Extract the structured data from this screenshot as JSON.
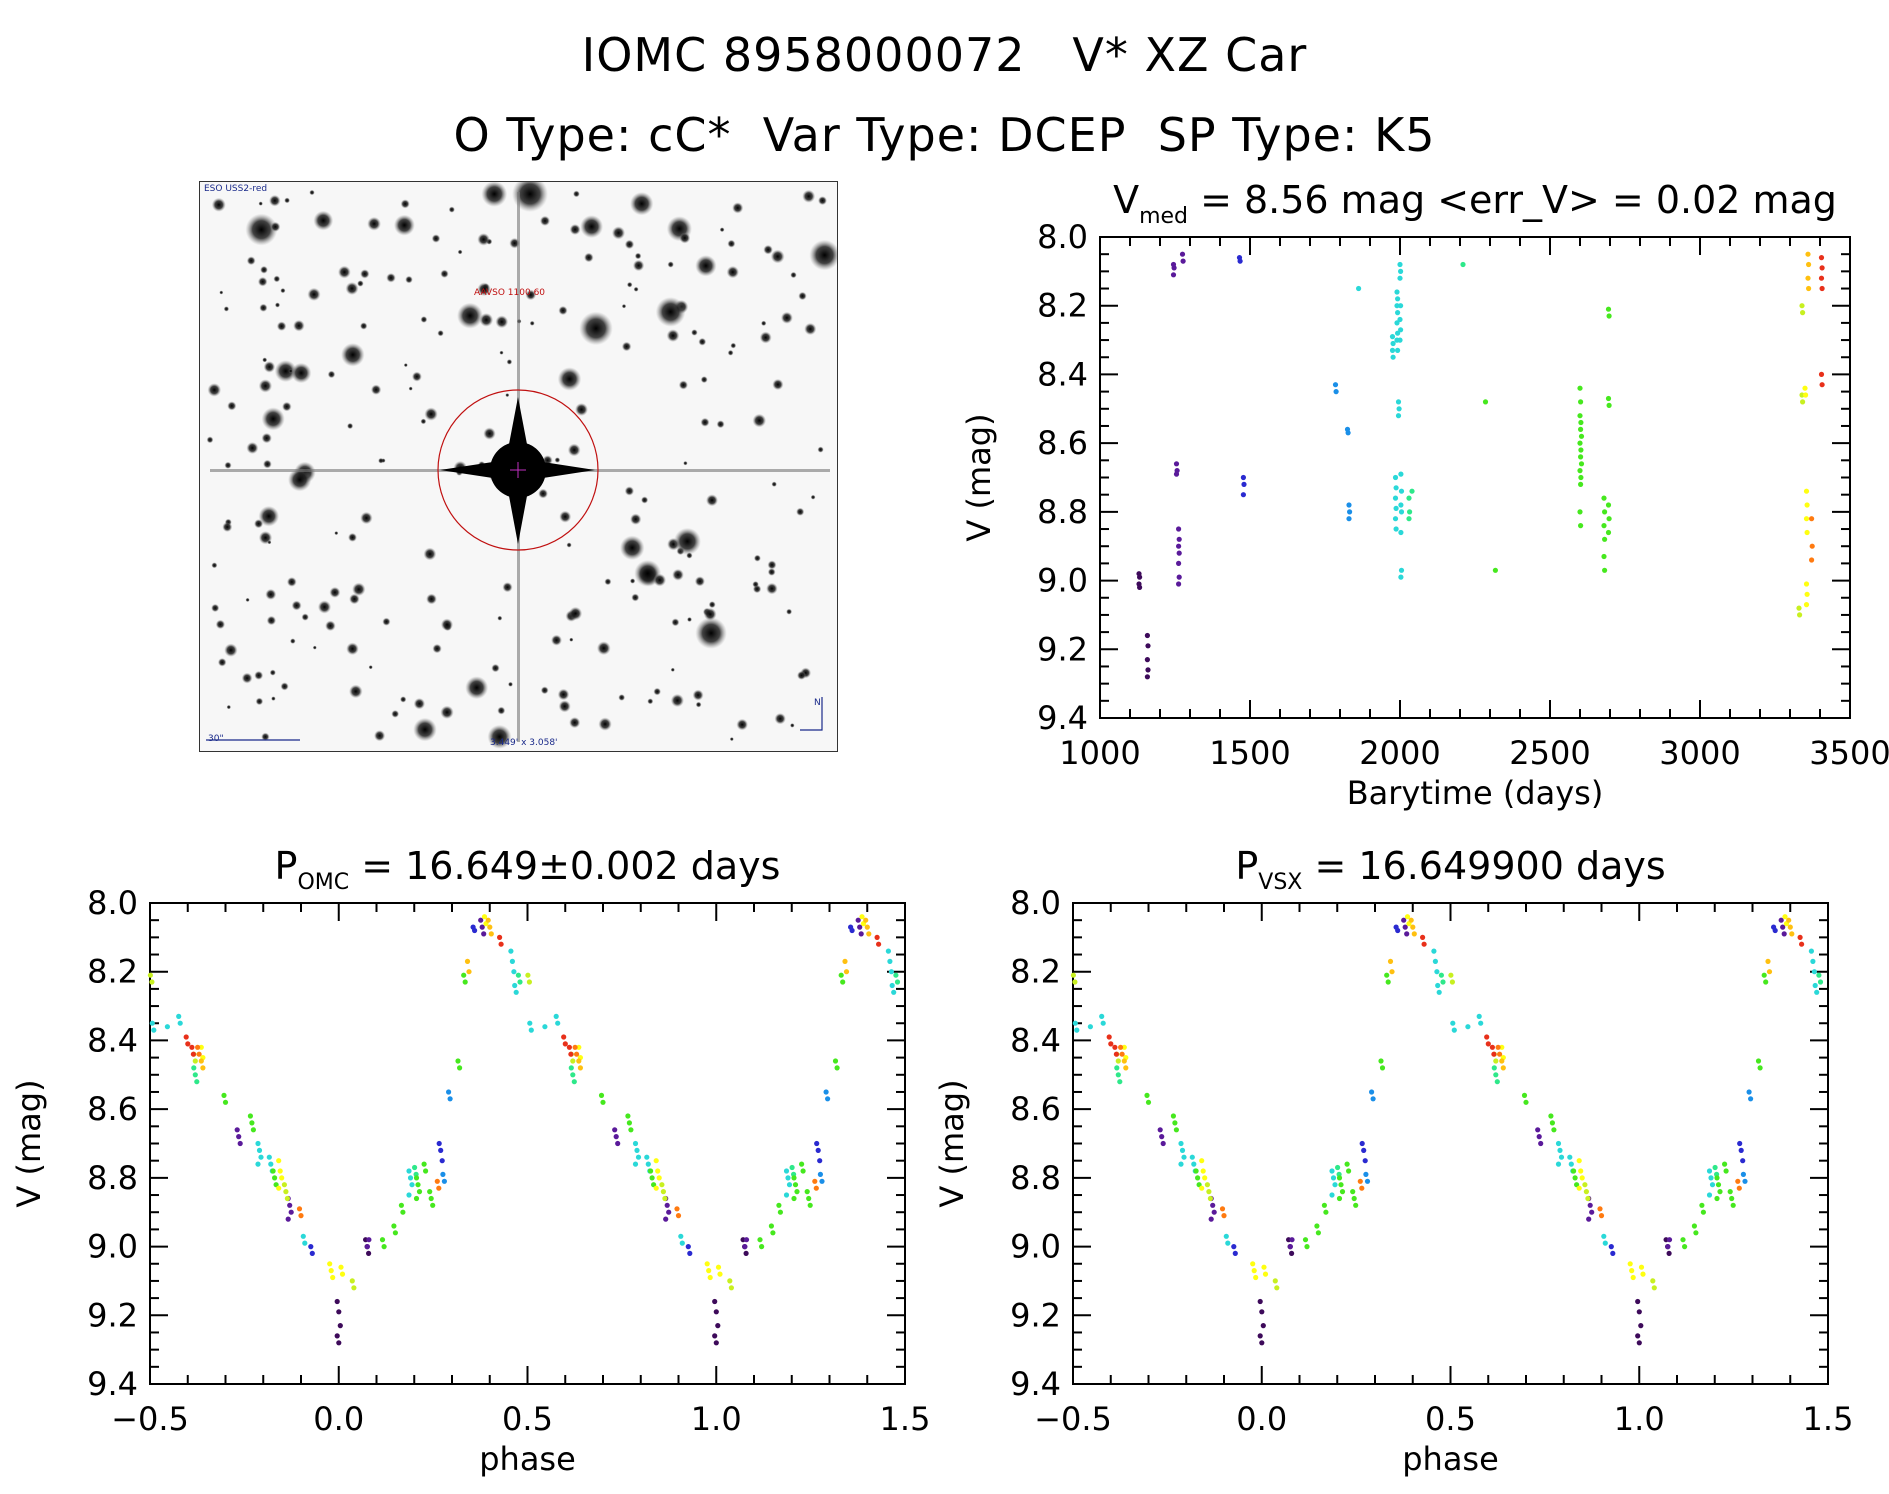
{
  "title_line1": "IOMC 8958000072   V* XZ Car",
  "title_line2": "O Type: cC*  Var Type: DCEP  SP Type: K5",
  "image_panel": {
    "survey": "ESO USS2-red",
    "label": "AAVSO 1100  60",
    "scale": "30\"",
    "fov": "3.449' x 3.058'",
    "compass": "N"
  },
  "colors": {
    "palette": [
      "#3d0a5a",
      "#5a1a9a",
      "#2a2ad0",
      "#1a8fe8",
      "#2ad8d8",
      "#2ee88a",
      "#46e81e",
      "#c8f020",
      "#ffff10",
      "#ffc010",
      "#ff7a10",
      "#e8301a"
    ]
  },
  "chart_data": [
    {
      "id": "lightcurve",
      "type": "scatter",
      "title_main": "V",
      "title_sub": "med",
      "title_rest": " = 8.56 mag <err_V> = 0.02 mag",
      "xlabel": "Barytime (days)",
      "ylabel": "V (mag)",
      "xlim": [
        1000,
        3500
      ],
      "ylim": [
        9.4,
        8.0
      ],
      "xticks": [
        1000,
        1500,
        2000,
        2500,
        3000,
        3500
      ],
      "xtick_labels": [
        "1000",
        "1500",
        "2000",
        "2500",
        "3000",
        "3500"
      ],
      "yticks": [
        8.0,
        8.2,
        8.4,
        8.6,
        8.8,
        9.0,
        9.2,
        9.4
      ],
      "ytick_labels": [
        "8.0",
        "8.2",
        "8.4",
        "8.6",
        "8.8",
        "9.0",
        "9.2",
        "9.4"
      ],
      "groups": [
        {
          "t": 1130,
          "v": [
            8.98,
            8.99,
            9.01,
            9.02
          ],
          "c": 0
        },
        {
          "t": 1158,
          "v": [
            9.16,
            9.19,
            9.23,
            9.26,
            9.28
          ],
          "c": 0
        },
        {
          "t": 1245,
          "v": [
            8.08,
            8.09,
            8.11
          ],
          "c": 1
        },
        {
          "t": 1255,
          "v": [
            8.66,
            8.68,
            8.69
          ],
          "c": 1
        },
        {
          "t": 1262,
          "v": [
            8.85,
            8.88,
            8.9,
            8.92,
            8.95,
            8.99,
            9.01
          ],
          "c": 1
        },
        {
          "t": 1275,
          "v": [
            8.05,
            8.07
          ],
          "c": 1
        },
        {
          "t": 1465,
          "v": [
            8.06,
            8.07
          ],
          "c": 2
        },
        {
          "t": 1478,
          "v": [
            8.7,
            8.72,
            8.75
          ],
          "c": 2
        },
        {
          "t": 1785,
          "v": [
            8.43,
            8.45
          ],
          "c": 3
        },
        {
          "t": 1825,
          "v": [
            8.56,
            8.57
          ],
          "c": 3
        },
        {
          "t": 1830,
          "v": [
            8.78,
            8.8,
            8.82
          ],
          "c": 3
        },
        {
          "t": 1862,
          "v": [
            8.15
          ],
          "c": 4
        },
        {
          "t": 1975,
          "v": [
            8.29,
            8.31,
            8.33,
            8.35
          ],
          "c": 4
        },
        {
          "t": 1990,
          "v": [
            8.16,
            8.18,
            8.2,
            8.22,
            8.25,
            8.28,
            8.3,
            8.33
          ],
          "c": 4
        },
        {
          "t": 1995,
          "v": [
            8.48,
            8.5,
            8.52
          ],
          "c": 4
        },
        {
          "t": 1985,
          "v": [
            8.7,
            8.73,
            8.76,
            8.79,
            8.82,
            8.85
          ],
          "c": 4
        },
        {
          "t": 2000,
          "v": [
            8.08,
            8.1,
            8.12,
            8.2,
            8.24,
            8.27,
            8.3
          ],
          "c": 4
        },
        {
          "t": 2003,
          "v": [
            8.69,
            8.74,
            8.78,
            8.8,
            8.86,
            8.97,
            8.99
          ],
          "c": 4
        },
        {
          "t": 2030,
          "v": [
            8.76,
            8.8,
            8.82
          ],
          "c": 5
        },
        {
          "t": 2040,
          "v": [
            8.74
          ],
          "c": 5
        },
        {
          "t": 2210,
          "v": [
            8.08
          ],
          "c": 5
        },
        {
          "t": 2285,
          "v": [
            8.48
          ],
          "c": 6
        },
        {
          "t": 2318,
          "v": [
            8.97
          ],
          "c": 6
        },
        {
          "t": 2600,
          "v": [
            8.44,
            8.48,
            8.52,
            8.56,
            8.6,
            8.64,
            8.68,
            8.72,
            8.8,
            8.84
          ],
          "c": 6
        },
        {
          "t": 2603,
          "v": [
            8.54,
            8.58,
            8.62,
            8.66,
            8.7
          ],
          "c": 6
        },
        {
          "t": 2680,
          "v": [
            8.76,
            8.8,
            8.84,
            8.88,
            8.93,
            8.97
          ],
          "c": 6
        },
        {
          "t": 2695,
          "v": [
            8.21,
            8.23,
            8.47,
            8.49,
            8.78,
            8.82,
            8.86
          ],
          "c": 6
        },
        {
          "t": 3330,
          "v": [
            9.08,
            9.1
          ],
          "c": 7
        },
        {
          "t": 3340,
          "v": [
            8.2,
            8.22,
            8.46,
            8.48
          ],
          "c": 7
        },
        {
          "t": 3350,
          "v": [
            8.44,
            8.46
          ],
          "c": 8
        },
        {
          "t": 3355,
          "v": [
            8.74,
            8.78,
            8.82,
            8.86,
            9.01,
            9.04,
            9.07
          ],
          "c": 8
        },
        {
          "t": 3360,
          "v": [
            8.05,
            8.08,
            8.12,
            8.15
          ],
          "c": 9
        },
        {
          "t": 3372,
          "v": [
            8.82,
            8.9,
            8.94
          ],
          "c": 10
        },
        {
          "t": 3405,
          "v": [
            8.06,
            8.09,
            8.12,
            8.15,
            8.4,
            8.43
          ],
          "c": 11
        }
      ]
    },
    {
      "id": "fold_omc",
      "type": "scatter",
      "title_main": "P",
      "title_sub": "OMC",
      "title_rest": " = 16.649±0.002 days",
      "xlabel": "phase",
      "ylabel": "V (mag)",
      "xlim": [
        -0.5,
        1.5
      ],
      "ylim": [
        9.4,
        8.0
      ],
      "xticks": [
        -0.5,
        0.0,
        0.5,
        1.0,
        1.5
      ],
      "xtick_labels": [
        "−0.5",
        "0.0",
        "0.5",
        "1.0",
        "1.5"
      ],
      "yticks": [
        8.0,
        8.2,
        8.4,
        8.6,
        8.8,
        9.0,
        9.2,
        9.4
      ],
      "ytick_labels": [
        "8.0",
        "8.2",
        "8.4",
        "8.6",
        "8.8",
        "9.0",
        "9.2",
        "9.4"
      ],
      "fold": [
        {
          "p": 0.0,
          "v": [
            9.16,
            9.19,
            9.23,
            9.26,
            9.28
          ],
          "c": 0
        },
        {
          "p": 0.075,
          "v": [
            8.98,
            9.0,
            9.02
          ],
          "c": 0
        },
        {
          "p": 0.08,
          "v": [
            9.0,
            8.98
          ],
          "c": 1
        },
        {
          "p": -0.13,
          "v": [
            8.86,
            8.88,
            8.9,
            8.92
          ],
          "c": 1
        },
        {
          "p": -0.265,
          "v": [
            8.66,
            8.68,
            8.7
          ],
          "c": 1
        },
        {
          "p": 0.38,
          "v": [
            8.05,
            8.07,
            8.09
          ],
          "c": 1
        },
        {
          "p": -0.07,
          "v": [
            9.0,
            9.02
          ],
          "c": 2
        },
        {
          "p": 0.27,
          "v": [
            8.7,
            8.72,
            8.75
          ],
          "c": 2
        },
        {
          "p": 0.36,
          "v": [
            8.07,
            8.08
          ],
          "c": 2
        },
        {
          "p": 0.295,
          "v": [
            8.55,
            8.57
          ],
          "c": 3
        },
        {
          "p": 0.28,
          "v": [
            8.79,
            8.81
          ],
          "c": 3
        },
        {
          "p": -0.45,
          "v": [
            8.36
          ],
          "c": 4
        },
        {
          "p": -0.42,
          "v": [
            8.33,
            8.35
          ],
          "c": 4
        },
        {
          "p": -0.21,
          "v": [
            8.7,
            8.72,
            8.74,
            8.76
          ],
          "c": 4
        },
        {
          "p": -0.18,
          "v": [
            8.74,
            8.76,
            8.78
          ],
          "c": 4
        },
        {
          "p": 0.46,
          "v": [
            8.14,
            8.17,
            8.2
          ],
          "c": 4
        },
        {
          "p": 0.47,
          "v": [
            8.24,
            8.26
          ],
          "c": 4
        },
        {
          "p": 0.51,
          "v": [
            8.35,
            8.37
          ],
          "c": 4
        },
        {
          "p": -0.09,
          "v": [
            8.97,
            8.99
          ],
          "c": 4
        },
        {
          "p": 0.19,
          "v": [
            8.78,
            8.8,
            8.82,
            8.85
          ],
          "c": 4
        },
        {
          "p": 0.205,
          "v": [
            8.77,
            8.79
          ],
          "c": 5
        },
        {
          "p": -0.38,
          "v": [
            8.48,
            8.5,
            8.52
          ],
          "c": 5
        },
        {
          "p": 0.48,
          "v": [
            8.21,
            8.23
          ],
          "c": 5
        },
        {
          "p": -0.3,
          "v": [
            8.56,
            8.58
          ],
          "c": 6
        },
        {
          "p": -0.23,
          "v": [
            8.62,
            8.64,
            8.66
          ],
          "c": 6
        },
        {
          "p": -0.17,
          "v": [
            8.78,
            8.8,
            8.82
          ],
          "c": 6
        },
        {
          "p": 0.17,
          "v": [
            8.88,
            8.9
          ],
          "c": 6
        },
        {
          "p": 0.12,
          "v": [
            8.98,
            9.0
          ],
          "c": 6
        },
        {
          "p": 0.15,
          "v": [
            8.94,
            8.96
          ],
          "c": 6
        },
        {
          "p": 0.21,
          "v": [
            8.8,
            8.82,
            8.84,
            8.86
          ],
          "c": 6
        },
        {
          "p": 0.23,
          "v": [
            8.76,
            8.78
          ],
          "c": 6
        },
        {
          "p": 0.245,
          "v": [
            8.84,
            8.86,
            8.88
          ],
          "c": 6
        },
        {
          "p": 0.32,
          "v": [
            8.46,
            8.48
          ],
          "c": 6
        },
        {
          "p": 0.335,
          "v": [
            8.21,
            8.23
          ],
          "c": 6
        },
        {
          "p": -0.495,
          "v": [
            8.21,
            8.23
          ],
          "c": 7
        },
        {
          "p": -0.38,
          "v": [
            8.44,
            8.46
          ],
          "c": 7
        },
        {
          "p": -0.14,
          "v": [
            8.82,
            8.84,
            8.86
          ],
          "c": 7
        },
        {
          "p": 0.04,
          "v": [
            9.1,
            9.12
          ],
          "c": 7
        },
        {
          "p": -0.36,
          "v": [
            8.42,
            8.45
          ],
          "c": 8
        },
        {
          "p": -0.155,
          "v": [
            8.75,
            8.78,
            8.8,
            8.83
          ],
          "c": 8
        },
        {
          "p": -0.02,
          "v": [
            9.05,
            9.07,
            9.09
          ],
          "c": 8
        },
        {
          "p": 0.01,
          "v": [
            9.06,
            9.08
          ],
          "c": 8
        },
        {
          "p": 0.39,
          "v": [
            8.04,
            8.06
          ],
          "c": 8
        },
        {
          "p": 0.345,
          "v": [
            8.17,
            8.2
          ],
          "c": 9
        },
        {
          "p": 0.4,
          "v": [
            8.05,
            8.07,
            8.09
          ],
          "c": 9
        },
        {
          "p": -0.36,
          "v": [
            8.46,
            8.48
          ],
          "c": 9
        },
        {
          "p": -0.1,
          "v": [
            8.89,
            8.91
          ],
          "c": 10
        },
        {
          "p": 0.265,
          "v": [
            8.81,
            8.83
          ],
          "c": 10
        },
        {
          "p": -0.37,
          "v": [
            8.42,
            8.44
          ],
          "c": 10
        },
        {
          "p": 0.43,
          "v": [
            8.1,
            8.12
          ],
          "c": 11
        },
        {
          "p": -0.4,
          "v": [
            8.39,
            8.41
          ],
          "c": 11
        },
        {
          "p": -0.385,
          "v": [
            8.42,
            8.44
          ],
          "c": 11
        }
      ]
    },
    {
      "id": "fold_vsx",
      "type": "scatter",
      "title_main": "P",
      "title_sub": "VSX",
      "title_rest": " = 16.649900 days",
      "xlabel": "phase",
      "ylabel": "V (mag)",
      "xlim": [
        -0.5,
        1.5
      ],
      "ylim": [
        9.4,
        8.0
      ],
      "xticks": [
        -0.5,
        0.0,
        0.5,
        1.0,
        1.5
      ],
      "xtick_labels": [
        "−0.5",
        "0.0",
        "0.5",
        "1.0",
        "1.5"
      ],
      "yticks": [
        8.0,
        8.2,
        8.4,
        8.6,
        8.8,
        9.0,
        9.2,
        9.4
      ],
      "ytick_labels": [
        "8.0",
        "8.2",
        "8.4",
        "8.6",
        "8.8",
        "9.0",
        "9.2",
        "9.4"
      ],
      "fold_same_as": "fold_omc"
    }
  ]
}
